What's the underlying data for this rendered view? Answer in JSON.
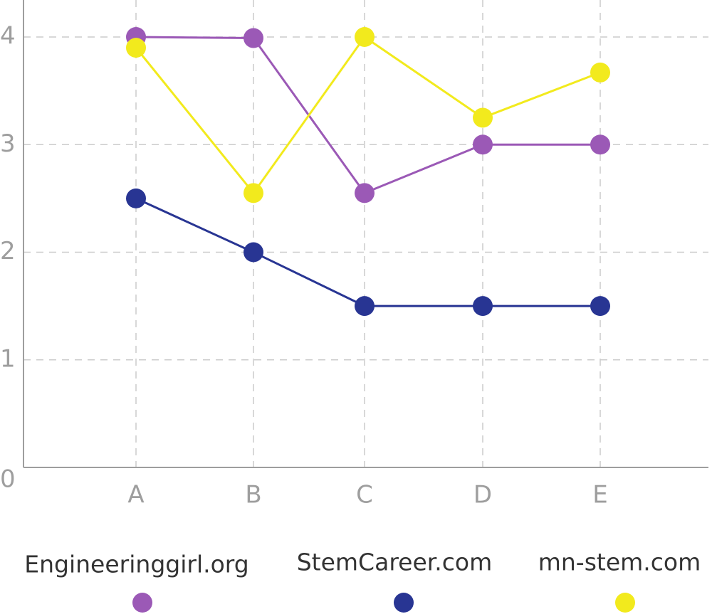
{
  "chart_data": {
    "type": "line",
    "title": "",
    "xlabel": "",
    "ylabel": "",
    "categories": [
      "A",
      "B",
      "C",
      "D",
      "E"
    ],
    "yticks": [
      "0",
      "1",
      "2",
      "3",
      "4"
    ],
    "ylim": [
      0,
      4
    ],
    "grid": true,
    "legend_position": "bottom",
    "series": [
      {
        "name": "Engineeringgirl.org",
        "color": "#9b59b6",
        "values": [
          4.0,
          3.99,
          2.55,
          3.0,
          3.0
        ]
      },
      {
        "name": "StemCareer.com",
        "color": "#283593",
        "values": [
          2.5,
          2.0,
          1.5,
          1.5,
          1.5
        ]
      },
      {
        "name": "mn-stem.com",
        "color": "#f2ea1d",
        "values": [
          3.9,
          2.55,
          4.0,
          3.25,
          3.67
        ]
      }
    ]
  }
}
